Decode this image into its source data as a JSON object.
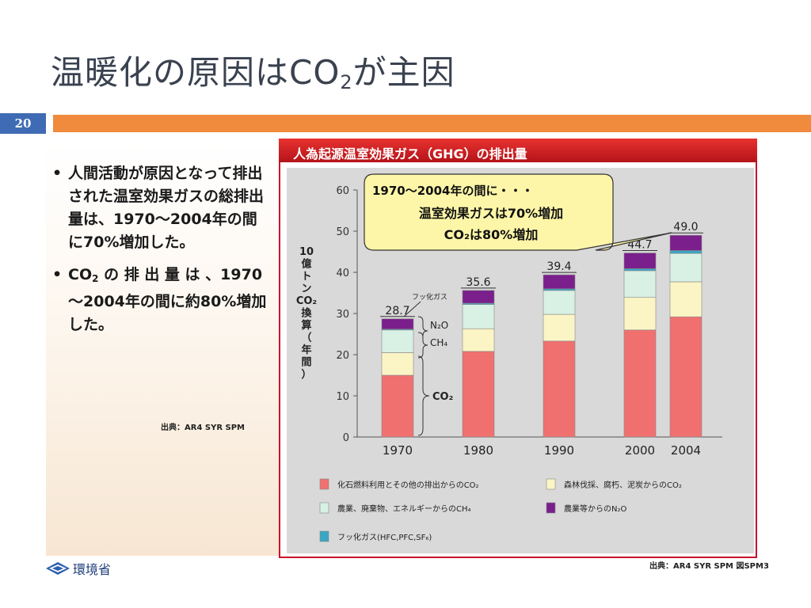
{
  "slide": {
    "title_main": "温暖化の原因はCO",
    "title_sub": "2",
    "title_rest": "が主因",
    "page_number": "20"
  },
  "left_panel": {
    "bullet1": "人間活動が原因となって排出された温室効果ガスの総排出量は、1970～2004年の間に70%増加した。",
    "bullet2_a": "CO",
    "bullet2_sub": "2",
    "bullet2_b": " の 排 出 量 は 、1970～2004年の間に約80%増加した。",
    "source": "出典：AR4 SYR SPM"
  },
  "footer": {
    "logo_text": "環境省",
    "source": "出典：AR4 SYR SPM 図SPM3"
  },
  "chart_data": {
    "type": "bar",
    "title": "人為起源温室効果ガス（GHG）の排出量",
    "ylabel_lines": [
      "10",
      "億",
      "ト",
      "ン",
      "CO₂",
      "換",
      "算",
      "（",
      "年",
      "間",
      "）"
    ],
    "ylim": [
      0,
      60
    ],
    "yticks": [
      "0",
      "10",
      "20",
      "30",
      "40",
      "50",
      "60"
    ],
    "categories": [
      "1970",
      "1980",
      "1990",
      "2000",
      "2004"
    ],
    "totals": [
      "28.7",
      "35.6",
      "39.4",
      "44.7",
      "49.0"
    ],
    "series": [
      {
        "name": "化石燃料利用とその他の排出からのCO₂",
        "color": "#f07070",
        "values": [
          15.0,
          20.8,
          23.3,
          26.0,
          29.2
        ]
      },
      {
        "name": "森林伐採、腐朽、泥炭からのCO₂",
        "color": "#fbf4c4",
        "values": [
          5.5,
          5.5,
          6.5,
          7.9,
          8.5
        ]
      },
      {
        "name": "農業、廃棄物、エネルギーからのCH₄",
        "color": "#d9f0e4",
        "values": [
          5.5,
          5.9,
          5.8,
          6.5,
          6.9
        ]
      },
      {
        "name": "フッ化ガス(HFC,PFC,SF₆)",
        "color": "#3aa6c4",
        "values": [
          0.2,
          0.3,
          0.4,
          0.5,
          0.7
        ]
      },
      {
        "name": "農業等からのN₂O",
        "color": "#7a1f8c",
        "values": [
          2.5,
          3.1,
          3.4,
          3.8,
          3.7
        ]
      }
    ],
    "callout_lines": [
      "1970～2004年の間に・・・",
      "温室効果ガスは70%増加",
      "CO₂は80%増加"
    ],
    "annotations": {
      "fgas": "フッ化ガス",
      "n2o": "N₂O",
      "ch4": "CH₄",
      "co2": "CO₂"
    },
    "legend_placement": "bottom",
    "grid": false
  }
}
